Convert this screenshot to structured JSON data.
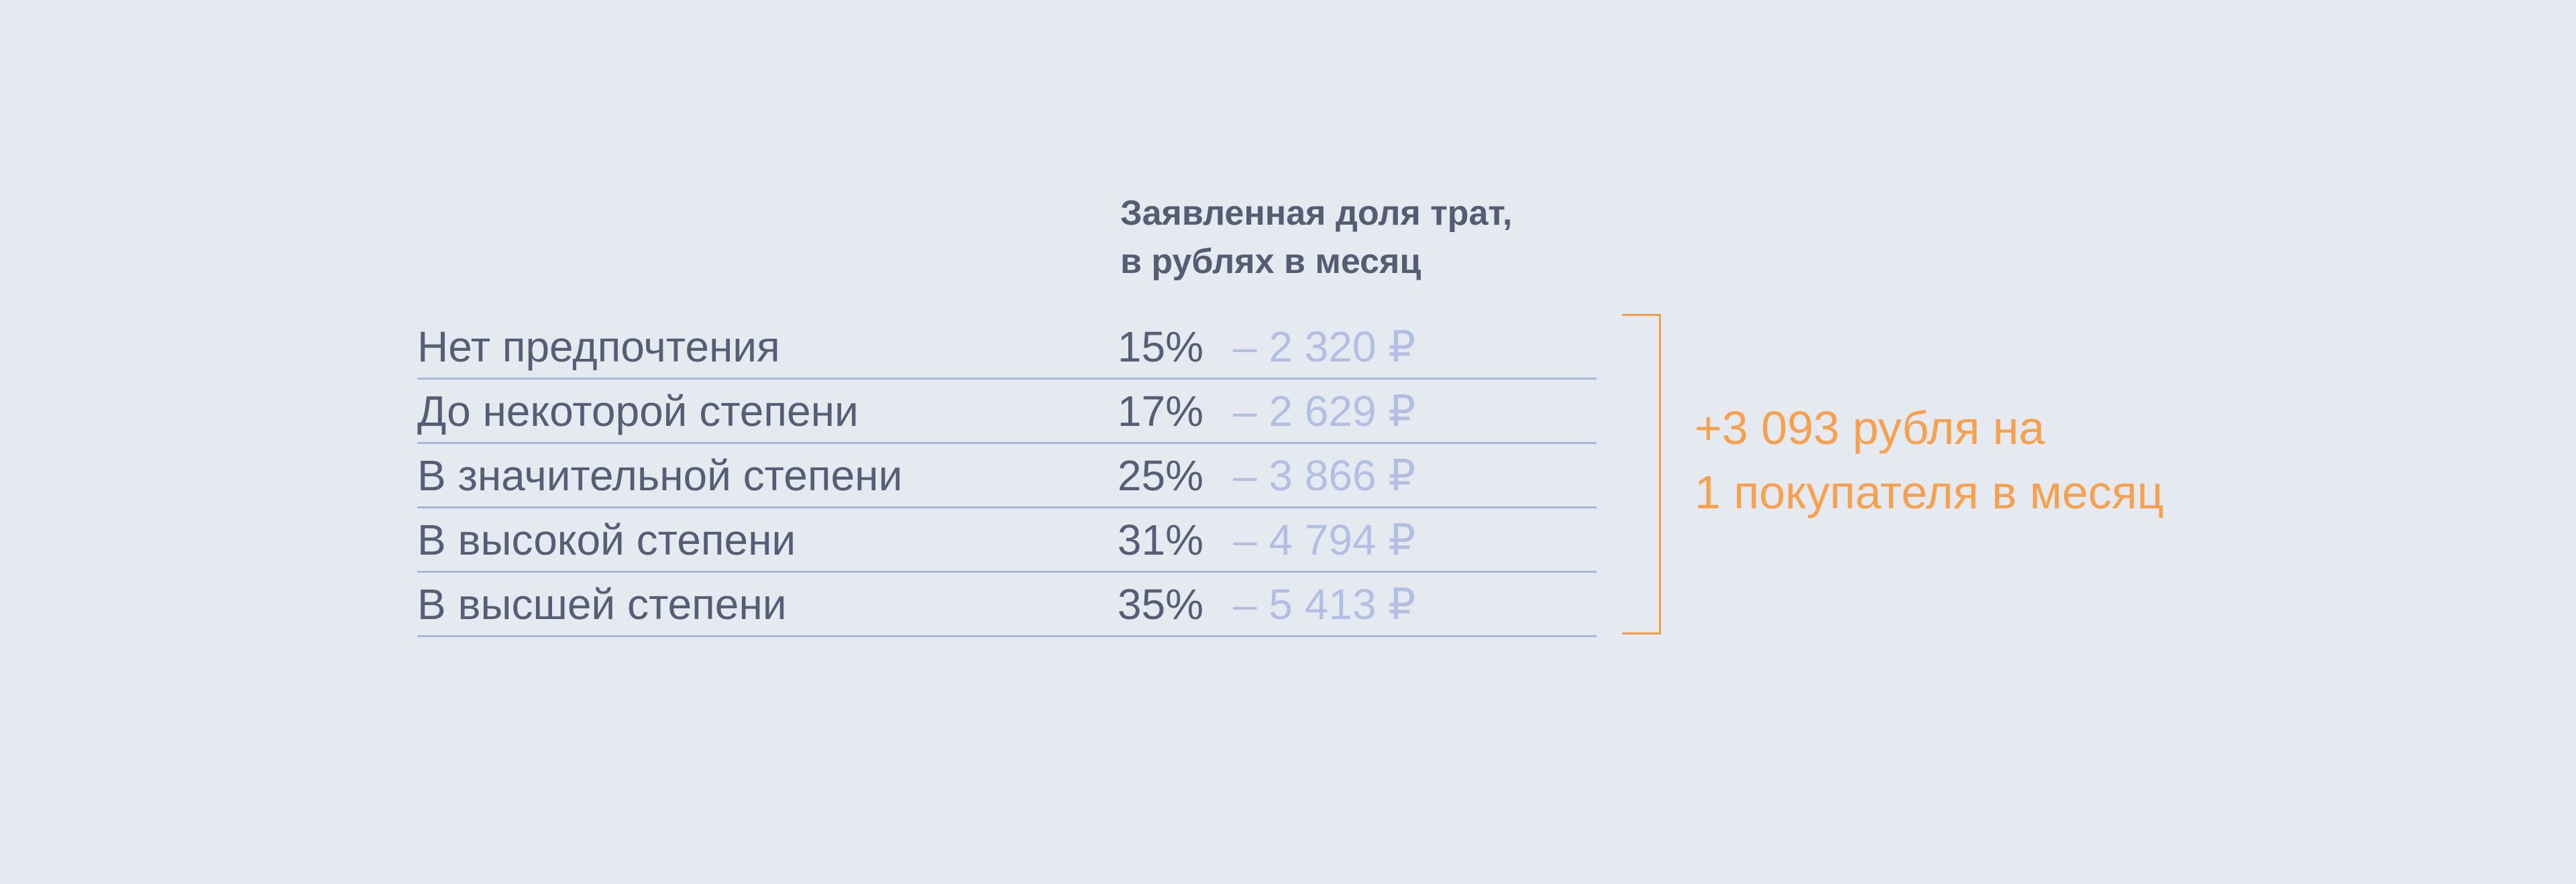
{
  "header": {
    "line1": "Заявленная доля трат,",
    "line2": "в рублях в месяц"
  },
  "rows": [
    {
      "label": "Нет предпочтения",
      "percent": "15%",
      "amount": "– 2 320 ₽"
    },
    {
      "label": "До некоторой степени",
      "percent": "17%",
      "amount": "– 2 629 ₽"
    },
    {
      "label": "В значительной степени",
      "percent": "25%",
      "amount": "– 3 866 ₽"
    },
    {
      "label": "В высокой степени",
      "percent": "31%",
      "amount": "– 4 794 ₽"
    },
    {
      "label": "В высшей степени",
      "percent": "35%",
      "amount": "– 5 413 ₽"
    }
  ],
  "summary": {
    "line1": "+3 093 рубля на",
    "line2": "1 покупателя в месяц"
  },
  "colors": {
    "background": "#e5e9f0",
    "text": "#565e75",
    "amount": "#b2bfe2",
    "rule": "#a9b6da",
    "accent": "#f7a04d"
  },
  "chart_data": {
    "type": "table",
    "columns": [
      "",
      "Заявленная доля трат, в рублях в месяц",
      ""
    ],
    "categories": [
      "Нет предпочтения",
      "До некоторой степени",
      "В значительной степени",
      "В высокой степени",
      "В высшей степени"
    ],
    "series": [
      {
        "values": [
          15,
          17,
          25,
          31,
          35
        ]
      },
      {
        "values": [
          -2320,
          -2629,
          -3866,
          -4794,
          -5413
        ]
      }
    ],
    "annotation": "+3 093 рубля на 1 покупателя в месяц"
  }
}
